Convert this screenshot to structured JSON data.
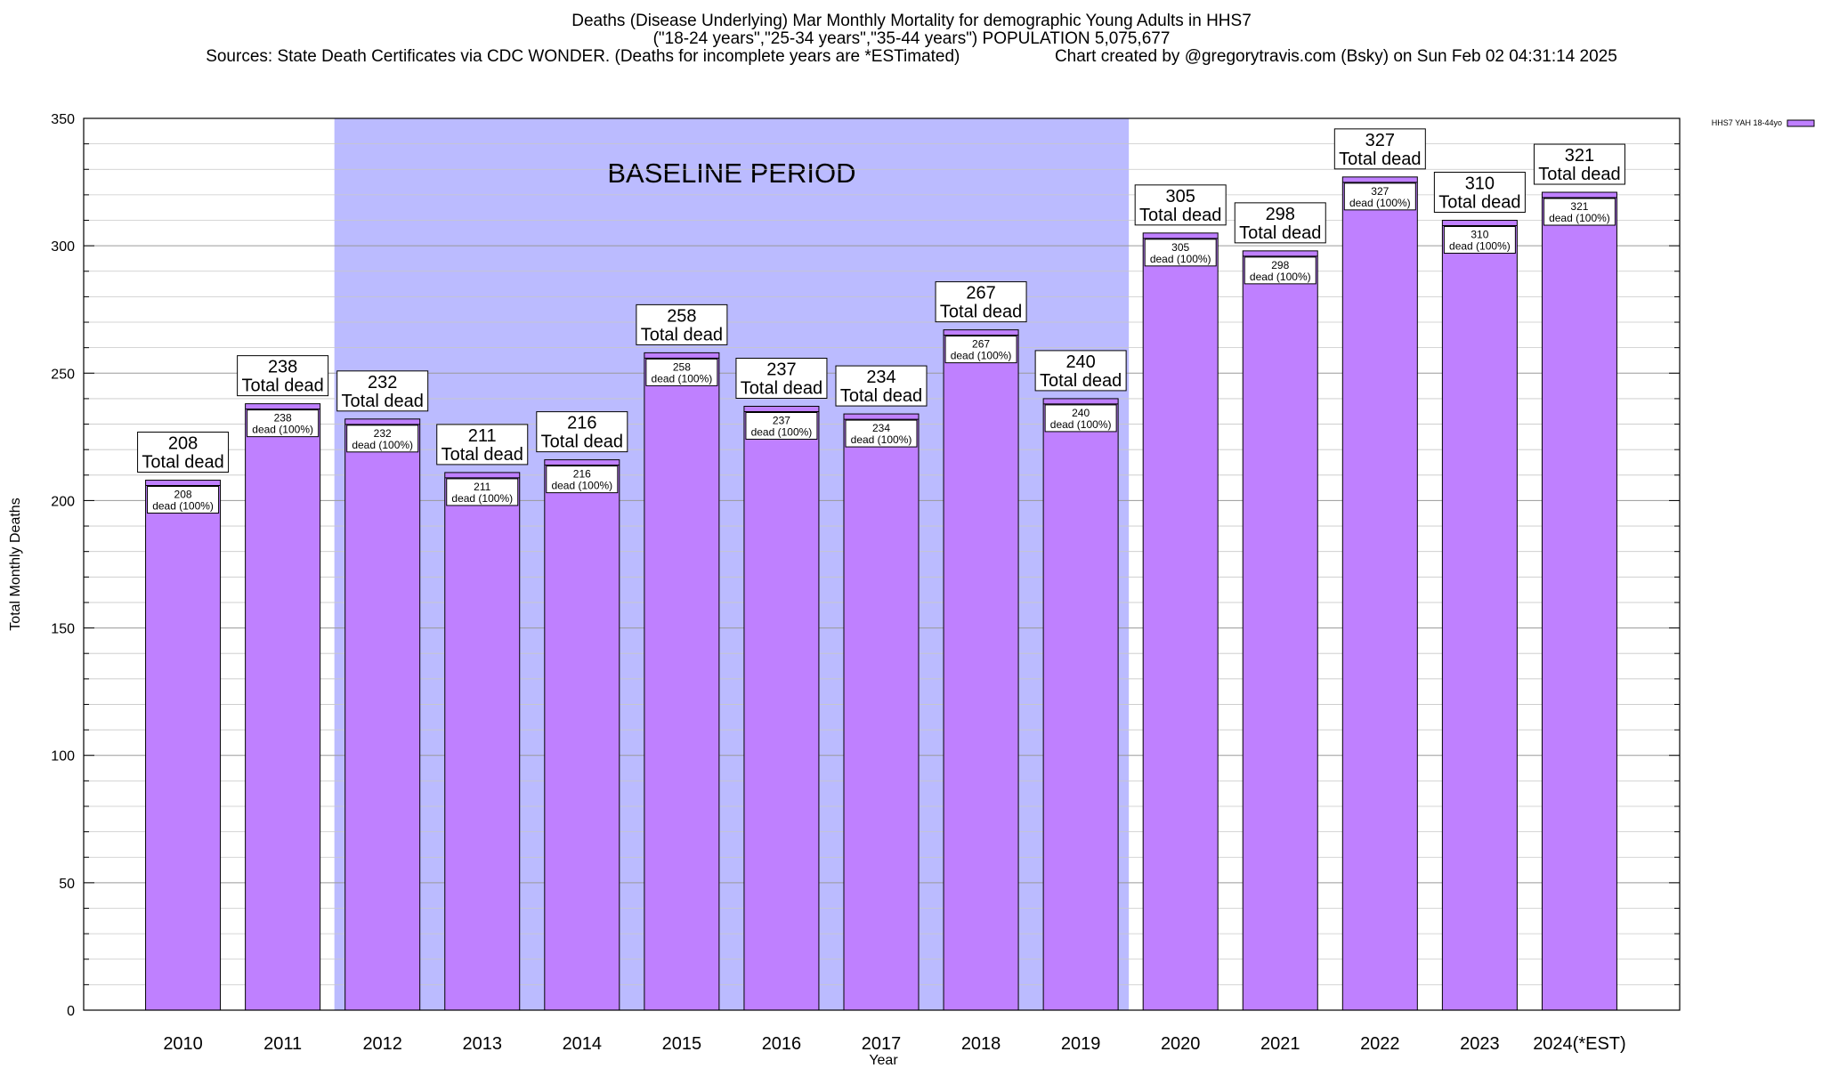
{
  "chart_data": {
    "type": "bar",
    "title": "Deaths (Disease Underlying) Mar Monthly Mortality for demographic Young Adults in HHS7",
    "subtitle": "(\"18-24 years\",\"25-34 years\",\"35-44 years\") POPULATION 5,075,677",
    "source_line": "Sources: State Death Certificates via CDC WONDER. (Deaths for incomplete years are *ESTimated)",
    "credit_line": "Chart created by @gregorytravis.com (Bsky) on Sun Feb 02 04:31:14 2025",
    "xlabel": "Year",
    "ylabel": "Total Monthly Deaths",
    "ylim": [
      0,
      350
    ],
    "yticks": [
      0,
      50,
      100,
      150,
      200,
      250,
      300,
      350
    ],
    "grid": true,
    "legend_position": "top-right",
    "categories": [
      "2010",
      "2011",
      "2012",
      "2013",
      "2014",
      "2015",
      "2016",
      "2017",
      "2018",
      "2019",
      "2020",
      "2021",
      "2022",
      "2023",
      "2024(*EST)"
    ],
    "series": [
      {
        "name": "HHS7 YAH 18-44yo",
        "color": "#bf80ff",
        "values": [
          208,
          238,
          232,
          211,
          216,
          258,
          237,
          234,
          267,
          240,
          305,
          298,
          327,
          310,
          321
        ]
      }
    ],
    "total_label_suffix": "Total dead",
    "inner_label_suffix": "dead (100%)",
    "baseline_label": "BASELINE PERIOD",
    "baseline_span": [
      "2012",
      "2019"
    ],
    "baseline_color": "#bbbbff"
  }
}
